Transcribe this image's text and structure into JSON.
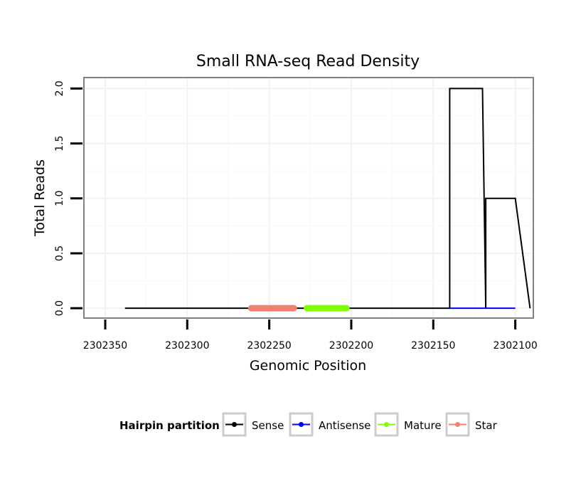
{
  "chart_data": {
    "type": "line",
    "title": "Small RNA-seq Read Density",
    "xlabel": "Genomic Position",
    "ylabel": "Total Reads",
    "x_reversed": true,
    "xlim": [
      2302363,
      2302089
    ],
    "ylim": [
      -0.09,
      2.1
    ],
    "x_ticks": [
      2302350,
      2302300,
      2302250,
      2302200,
      2302150,
      2302100
    ],
    "x_tick_labels": [
      "2302350",
      "2302300",
      "2302250",
      "2302200",
      "2302150",
      "2302100"
    ],
    "y_ticks": [
      0.0,
      0.5,
      1.0,
      1.5,
      2.0
    ],
    "y_tick_labels": [
      "0.0",
      "0.5",
      "1.0",
      "1.5",
      "2.0"
    ],
    "grid": true,
    "series": [
      {
        "name": "Sense",
        "color": "#000000",
        "x": [
          2302338,
          2302140,
          2302140,
          2302120,
          2302118,
          2302118,
          2302100,
          2302091
        ],
        "y": [
          0,
          0,
          2,
          2,
          0,
          1,
          1,
          0
        ]
      },
      {
        "name": "Antisense",
        "color": "#0000ff",
        "x": [
          2302140,
          2302100
        ],
        "y": [
          0,
          0
        ]
      },
      {
        "name": "Mature",
        "color": "#7fff00",
        "x": [
          2302227,
          2302203
        ],
        "y": [
          0,
          0
        ]
      },
      {
        "name": "Star",
        "color": "#f08070",
        "x": [
          2302261,
          2302235
        ],
        "y": [
          0,
          0
        ]
      }
    ],
    "legend": {
      "title": "Hairpin partition",
      "position": "bottom",
      "entries": [
        "Sense",
        "Antisense",
        "Mature",
        "Star"
      ]
    }
  }
}
